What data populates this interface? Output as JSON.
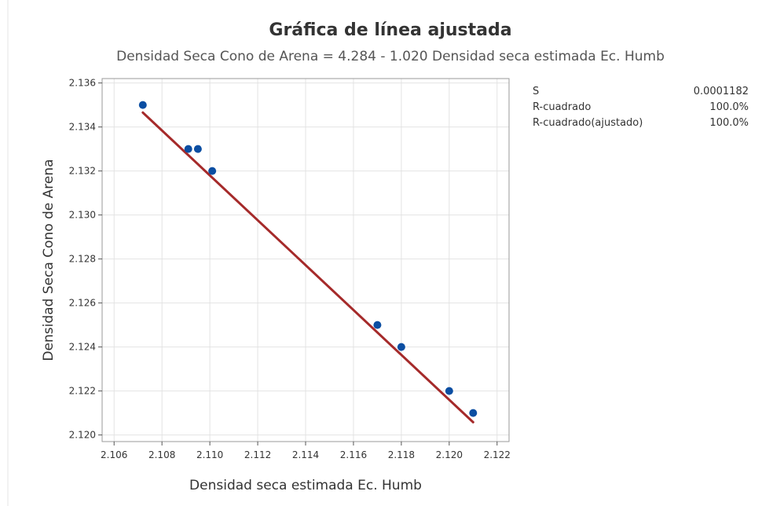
{
  "chart_data": {
    "type": "scatter",
    "title": "Gráfica de línea ajustada",
    "subtitle": "Densidad Seca Cono de Arena = 4.284 - 1.020 Densidad seca estimada Ec. Humb",
    "xlabel": "Densidad seca estimada Ec. Humb",
    "ylabel": "Densidad Seca Cono de Arena",
    "xlim": [
      2.1055,
      2.1225
    ],
    "ylim": [
      2.1197,
      2.1362
    ],
    "x_ticks": [
      2.106,
      2.108,
      2.11,
      2.112,
      2.114,
      2.116,
      2.118,
      2.12,
      2.122
    ],
    "y_ticks": [
      2.12,
      2.122,
      2.124,
      2.126,
      2.128,
      2.13,
      2.132,
      2.134,
      2.136
    ],
    "tick_decimals": 3,
    "grid": true,
    "points": [
      {
        "x": 2.1072,
        "y": 2.135
      },
      {
        "x": 2.1091,
        "y": 2.133
      },
      {
        "x": 2.1095,
        "y": 2.133
      },
      {
        "x": 2.1101,
        "y": 2.132
      },
      {
        "x": 2.117,
        "y": 2.125
      },
      {
        "x": 2.118,
        "y": 2.124
      },
      {
        "x": 2.12,
        "y": 2.122
      },
      {
        "x": 2.121,
        "y": 2.121
      }
    ],
    "fit": {
      "intercept": 4.284,
      "slope": -1.02,
      "x_range": [
        2.1072,
        2.121
      ]
    },
    "stats": [
      {
        "label": "S",
        "value": "0.0001182"
      },
      {
        "label": "R-cuadrado",
        "value": "100.0%"
      },
      {
        "label": "R-cuadrado(ajustado)",
        "value": "100.0%"
      }
    ],
    "colors": {
      "points": "#0b4ea2",
      "fit_line": "#a52a2a",
      "grid": "#e3e3e3"
    }
  }
}
